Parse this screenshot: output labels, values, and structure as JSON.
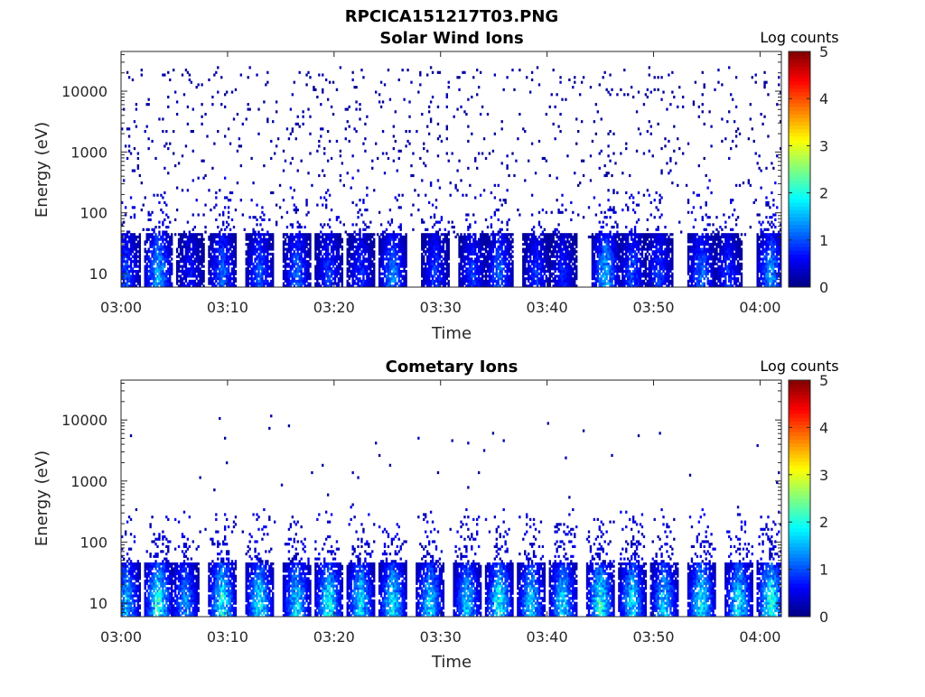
{
  "figure_title": "RPCICA151217T03.PNG",
  "colorbar_label": "Log counts",
  "colormap": "jet",
  "chart_data": [
    {
      "type": "heatmap",
      "title": "Solar Wind Ions",
      "xlabel": "Time",
      "ylabel": "Energy (eV)",
      "y_scale": "log",
      "xlim": [
        "03:00",
        "04:02"
      ],
      "ylim": [
        6,
        45000
      ],
      "x_ticks": [
        "03:00",
        "03:10",
        "03:20",
        "03:30",
        "03:40",
        "03:50",
        "04:00"
      ],
      "y_ticks": [
        "10",
        "100",
        "1000",
        "10000"
      ],
      "colorbar": {
        "label": "Log counts",
        "range": [
          0,
          5
        ],
        "ticks": [
          "0",
          "1",
          "2",
          "3",
          "4",
          "5"
        ]
      },
      "low_energy_bursts": [
        {
          "time_min": 0.5,
          "peak_log_counts": 1.3
        },
        {
          "time_min": 3.5,
          "peak_log_counts": 2.0
        },
        {
          "time_min": 6.5,
          "peak_log_counts": 0.9
        },
        {
          "time_min": 9.5,
          "peak_log_counts": 1.5
        },
        {
          "time_min": 13.0,
          "peak_log_counts": 1.4
        },
        {
          "time_min": 16.5,
          "peak_log_counts": 1.5
        },
        {
          "time_min": 19.5,
          "peak_log_counts": 1.2
        },
        {
          "time_min": 22.5,
          "peak_log_counts": 1.1
        },
        {
          "time_min": 25.5,
          "peak_log_counts": 1.7
        },
        {
          "time_min": 29.5,
          "peak_log_counts": 1.2
        },
        {
          "time_min": 33.0,
          "peak_log_counts": 1.2
        },
        {
          "time_min": 35.5,
          "peak_log_counts": 1.5
        },
        {
          "time_min": 39.0,
          "peak_log_counts": 1.1
        },
        {
          "time_min": 41.5,
          "peak_log_counts": 1.0
        },
        {
          "time_min": 45.5,
          "peak_log_counts": 2.0
        },
        {
          "time_min": 48.0,
          "peak_log_counts": 1.3
        },
        {
          "time_min": 50.5,
          "peak_log_counts": 1.2
        },
        {
          "time_min": 54.5,
          "peak_log_counts": 1.5
        },
        {
          "time_min": 57.0,
          "peak_log_counts": 1.1
        },
        {
          "time_min": 61.0,
          "peak_log_counts": 1.8
        }
      ],
      "background_sparse_counts_log_energy_range": [
        1.6,
        4.4
      ]
    },
    {
      "type": "heatmap",
      "title": "Cometary Ions",
      "xlabel": "Time",
      "ylabel": "Energy (eV)",
      "y_scale": "log",
      "xlim": [
        "03:00",
        "04:02"
      ],
      "ylim": [
        6,
        45000
      ],
      "x_ticks": [
        "03:00",
        "03:10",
        "03:20",
        "03:30",
        "03:40",
        "03:50",
        "04:00"
      ],
      "y_ticks": [
        "10",
        "100",
        "1000",
        "10000"
      ],
      "colorbar": {
        "label": "Log counts",
        "range": [
          0,
          5
        ],
        "ticks": [
          "0",
          "1",
          "2",
          "3",
          "4",
          "5"
        ]
      },
      "low_energy_bursts": [
        {
          "time_min": 0.5,
          "peak_log_counts": 2.0
        },
        {
          "time_min": 3.5,
          "peak_log_counts": 2.7
        },
        {
          "time_min": 6.0,
          "peak_log_counts": 1.8
        },
        {
          "time_min": 9.5,
          "peak_log_counts": 2.6
        },
        {
          "time_min": 13.0,
          "peak_log_counts": 2.4
        },
        {
          "time_min": 16.5,
          "peak_log_counts": 2.3
        },
        {
          "time_min": 19.5,
          "peak_log_counts": 2.5
        },
        {
          "time_min": 22.5,
          "peak_log_counts": 2.3
        },
        {
          "time_min": 25.5,
          "peak_log_counts": 2.4
        },
        {
          "time_min": 29.0,
          "peak_log_counts": 2.2
        },
        {
          "time_min": 32.5,
          "peak_log_counts": 2.1
        },
        {
          "time_min": 35.5,
          "peak_log_counts": 2.5
        },
        {
          "time_min": 38.5,
          "peak_log_counts": 2.2
        },
        {
          "time_min": 41.5,
          "peak_log_counts": 2.3
        },
        {
          "time_min": 45.0,
          "peak_log_counts": 2.6
        },
        {
          "time_min": 48.0,
          "peak_log_counts": 2.3
        },
        {
          "time_min": 51.0,
          "peak_log_counts": 2.2
        },
        {
          "time_min": 54.5,
          "peak_log_counts": 2.5
        },
        {
          "time_min": 58.0,
          "peak_log_counts": 2.4
        },
        {
          "time_min": 61.0,
          "peak_log_counts": 2.7
        }
      ],
      "background_sparse_counts_log_energy_range": [
        1.8,
        4.1
      ]
    }
  ]
}
